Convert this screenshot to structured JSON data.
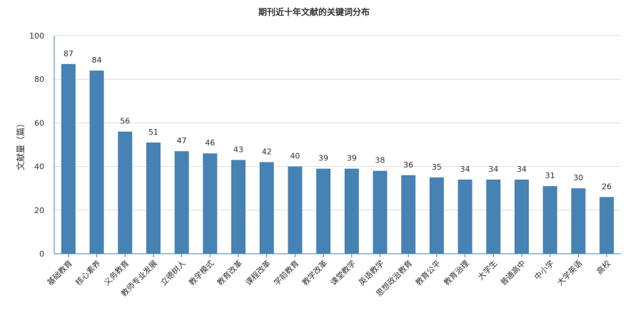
{
  "chart_data": {
    "type": "bar",
    "title": "期刊近十年文献的关键词分布",
    "ylabel": "文献量（篇）",
    "xlabel": "",
    "ylim": [
      0,
      100
    ],
    "yticks": [
      0,
      20,
      40,
      60,
      80,
      100
    ],
    "grid": true,
    "bar_color": "#4682b4",
    "categories": [
      "基础教育",
      "核心素养",
      "义务教育",
      "教师专业发展",
      "立德树人",
      "教学模式",
      "教育改革",
      "课程改革",
      "学前教育",
      "教学改革",
      "课堂教学",
      "英语教学",
      "思想政治教育",
      "教育公平",
      "教育治理",
      "大学生",
      "普通高中",
      "中小学",
      "大学英语",
      "高校"
    ],
    "values": [
      87,
      84,
      56,
      51,
      47,
      46,
      43,
      42,
      40,
      39,
      39,
      38,
      36,
      35,
      34,
      34,
      34,
      31,
      30,
      26
    ]
  }
}
